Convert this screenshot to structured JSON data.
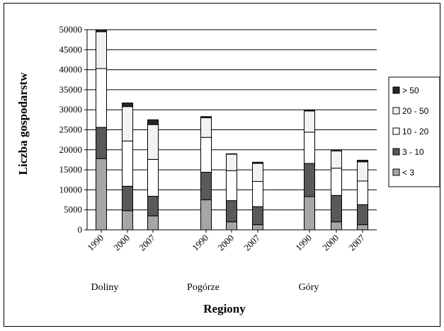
{
  "chart_data": {
    "type": "bar",
    "stacked": true,
    "title": "",
    "xlabel": "Regiony",
    "ylabel": "Liczba gospodarstw",
    "ylim": [
      0,
      50000
    ],
    "yticks": [
      0,
      5000,
      10000,
      15000,
      20000,
      25000,
      30000,
      35000,
      40000,
      45000,
      50000
    ],
    "grid": "horizontal",
    "legend_position": "right",
    "groups": [
      {
        "name": "Doliny",
        "categories": [
          "1990",
          "2000",
          "2007"
        ]
      },
      {
        "name": "Pogórze",
        "categories": [
          "1990",
          "2000",
          "2007"
        ]
      },
      {
        "name": "Góry",
        "categories": [
          "1990",
          "2000",
          "2007"
        ]
      }
    ],
    "series": [
      {
        "name": "< 3",
        "color": "#a6a6a6",
        "values": [
          17800,
          4800,
          3500,
          7500,
          2000,
          1300,
          8300,
          2000,
          1300
        ]
      },
      {
        "name": "3 - 10",
        "color": "#595959",
        "values": [
          7800,
          6100,
          4900,
          6900,
          5300,
          4500,
          8300,
          6600,
          5000
        ]
      },
      {
        "name": "10 - 20",
        "color": "#ffffff",
        "values": [
          14700,
          11300,
          9200,
          8700,
          7500,
          6300,
          7800,
          6800,
          5900
        ]
      },
      {
        "name": "20 - 50",
        "color": "#f2f2f2",
        "values": [
          9200,
          8600,
          8700,
          4900,
          4100,
          4500,
          5300,
          4300,
          4800
        ]
      },
      {
        "name": "> 50",
        "color": "#262626",
        "values": [
          500,
          900,
          1200,
          300,
          100,
          300,
          200,
          100,
          400
        ]
      }
    ]
  }
}
